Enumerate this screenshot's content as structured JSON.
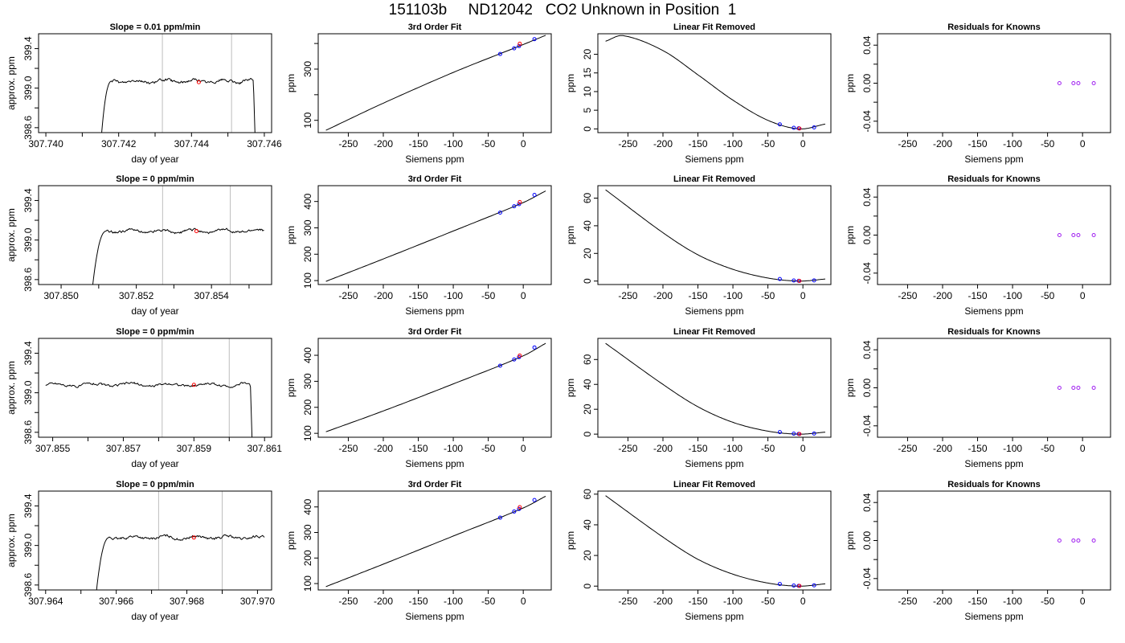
{
  "title": "151103b     ND12042   CO2 Unknown in Position  1",
  "colors": {
    "line": "#000000",
    "known_point": "#0000ff",
    "unknown_point": "#ff0000",
    "residual_point": "#a020f0",
    "window_line": "#bebebe"
  },
  "chart_data": [
    {
      "type": "line",
      "panel": "time",
      "title": "Slope =  0.01  ppm/min",
      "xlabel": "day of year",
      "ylabel": "approx. ppm",
      "xlim": [
        307.7398,
        307.7462
      ],
      "ylim": [
        398.55,
        399.55
      ],
      "xticks": [
        307.74,
        307.742,
        307.744,
        307.746
      ],
      "xtick_labels": [
        "307.740",
        "307.742",
        "307.744",
        "307.746"
      ],
      "xtick_minor": [
        307.741,
        307.743,
        307.745
      ],
      "yticks": [
        398.6,
        399.0,
        399.4
      ],
      "ytick_labels": [
        "398.6",
        "399.0",
        "399.4"
      ],
      "ytick_minor": [
        398.8,
        399.2
      ],
      "series_x_range": [
        307.7415,
        307.7458
      ],
      "rise_end": 307.7418,
      "plateau": 399.07,
      "drop_start": 307.7457,
      "vlines": [
        307.7432,
        307.7451
      ],
      "marker": {
        "x": 307.7442,
        "y": 399.06
      }
    },
    {
      "type": "line",
      "panel": "fit",
      "title": "3rd Order Fit",
      "xlabel": "Siemens ppm",
      "ylabel": "ppm",
      "xlim": [
        -293,
        40
      ],
      "ylim": [
        52,
        438
      ],
      "xticks": [
        -250,
        -200,
        -150,
        -100,
        -50,
        0
      ],
      "xtick_labels": [
        "-250",
        "-200",
        "-150",
        "-100",
        "-50",
        "0"
      ],
      "yticks": [
        100,
        300
      ],
      "ytick_labels": [
        "100",
        "300"
      ],
      "ytick_minor": [
        200,
        400
      ],
      "curve": [
        {
          "x": -282,
          "y": 61
        },
        {
          "x": -200,
          "y": 167
        },
        {
          "x": -100,
          "y": 287
        },
        {
          "x": 0,
          "y": 396
        },
        {
          "x": 32,
          "y": 432
        }
      ],
      "knowns": [
        {
          "x": -33,
          "y": 359
        },
        {
          "x": -13,
          "y": 381
        },
        {
          "x": -6,
          "y": 390
        },
        {
          "x": 16,
          "y": 417
        }
      ],
      "unknown": {
        "x": -5,
        "y": 399
      }
    },
    {
      "type": "line",
      "panel": "linfit",
      "title": "Linear Fit Removed",
      "xlabel": "Siemens ppm",
      "ylabel": "ppm",
      "xlim": [
        -293,
        40
      ],
      "ylim": [
        -1,
        25.5
      ],
      "xticks": [
        -250,
        -200,
        -150,
        -100,
        -50,
        0
      ],
      "xtick_labels": [
        "-250",
        "-200",
        "-150",
        "-100",
        "-50",
        "0"
      ],
      "yticks": [
        0,
        5,
        10,
        15,
        20
      ],
      "ytick_labels": [
        "0",
        "5",
        "10",
        "15",
        "20"
      ],
      "curve": [
        {
          "x": -282,
          "y": 23.5
        },
        {
          "x": -257,
          "y": 25.0
        },
        {
          "x": -200,
          "y": 21.0
        },
        {
          "x": -150,
          "y": 14.5
        },
        {
          "x": -100,
          "y": 7.7
        },
        {
          "x": -50,
          "y": 2.3
        },
        {
          "x": -5,
          "y": 0
        },
        {
          "x": 32,
          "y": 1.3
        }
      ],
      "knowns": [
        {
          "x": -33,
          "y": 1.2
        },
        {
          "x": -13,
          "y": 0.3
        },
        {
          "x": -6,
          "y": 0.15
        },
        {
          "x": 16,
          "y": 0.4
        }
      ],
      "unknown": {
        "x": -5,
        "y": 0.1
      }
    },
    {
      "type": "scatter",
      "panel": "resid",
      "title": "Residuals for Knowns",
      "xlabel": "Siemens ppm",
      "ylabel": "ppm",
      "xlim": [
        -293,
        40
      ],
      "ylim": [
        -0.052,
        0.052
      ],
      "xticks": [
        -250,
        -200,
        -150,
        -100,
        -50,
        0
      ],
      "xtick_labels": [
        "-250",
        "-200",
        "-150",
        "-100",
        "-50",
        "0"
      ],
      "yticks": [
        -0.04,
        0.0,
        0.04
      ],
      "ytick_labels": [
        "-0.04",
        "0.00",
        "0.04"
      ],
      "ytick_minor": [
        -0.02,
        0.02
      ],
      "points": [
        {
          "x": -33,
          "y": 0
        },
        {
          "x": -13,
          "y": 0
        },
        {
          "x": -6,
          "y": 0
        },
        {
          "x": 16,
          "y": 0
        }
      ]
    },
    {
      "type": "line",
      "panel": "time",
      "title": "Slope =  0  ppm/min",
      "xlabel": "day of year",
      "ylabel": "approx. ppm",
      "xlim": [
        307.8494,
        307.8556
      ],
      "ylim": [
        398.55,
        399.55
      ],
      "xticks": [
        307.85,
        307.852,
        307.854
      ],
      "xtick_labels": [
        "307.850",
        "307.852",
        "307.854"
      ],
      "xtick_minor": [
        307.851,
        307.853,
        307.855
      ],
      "yticks": [
        398.6,
        399.0,
        399.4
      ],
      "ytick_labels": [
        "398.6",
        "399.0",
        "399.4"
      ],
      "ytick_minor": [
        398.8,
        399.2
      ],
      "series_x_range": [
        307.8508,
        307.8554
      ],
      "rise_end": 307.8512,
      "plateau": 399.09,
      "drop_start": null,
      "vlines": [
        307.8527,
        307.8545
      ],
      "marker": {
        "x": 307.8536,
        "y": 399.09
      }
    },
    {
      "type": "line",
      "panel": "fit",
      "title": "3rd Order Fit",
      "xlabel": "Siemens ppm",
      "ylabel": "ppm",
      "xlim": [
        -293,
        40
      ],
      "ylim": [
        85,
        460
      ],
      "xticks": [
        -250,
        -200,
        -150,
        -100,
        -50,
        0
      ],
      "xtick_labels": [
        "-250",
        "-200",
        "-150",
        "-100",
        "-50",
        "0"
      ],
      "yticks": [
        100,
        200,
        300,
        400
      ],
      "ytick_labels": [
        "100",
        "200",
        "300",
        "400"
      ],
      "curve": [
        {
          "x": -282,
          "y": 97
        },
        {
          "x": -200,
          "y": 182
        },
        {
          "x": -100,
          "y": 288
        },
        {
          "x": 0,
          "y": 396
        },
        {
          "x": 32,
          "y": 440
        }
      ],
      "knowns": [
        {
          "x": -33,
          "y": 358
        },
        {
          "x": -13,
          "y": 382
        },
        {
          "x": -6,
          "y": 390
        },
        {
          "x": 16,
          "y": 425
        }
      ],
      "unknown": {
        "x": -5,
        "y": 398
      }
    },
    {
      "type": "line",
      "panel": "linfit",
      "title": "Linear Fit Removed",
      "xlabel": "Siemens ppm",
      "ylabel": "ppm",
      "xlim": [
        -293,
        40
      ],
      "ylim": [
        -2.5,
        69
      ],
      "xticks": [
        -250,
        -200,
        -150,
        -100,
        -50,
        0
      ],
      "xtick_labels": [
        "-250",
        "-200",
        "-150",
        "-100",
        "-50",
        "0"
      ],
      "yticks": [
        0,
        20,
        40,
        60
      ],
      "ytick_labels": [
        "0",
        "20",
        "40",
        "60"
      ],
      "curve": [
        {
          "x": -282,
          "y": 66
        },
        {
          "x": -200,
          "y": 35
        },
        {
          "x": -150,
          "y": 19
        },
        {
          "x": -100,
          "y": 8.5
        },
        {
          "x": -50,
          "y": 2.2
        },
        {
          "x": -5,
          "y": 0
        },
        {
          "x": 32,
          "y": 1.5
        }
      ],
      "knowns": [
        {
          "x": -33,
          "y": 1.5
        },
        {
          "x": -13,
          "y": 0.4
        },
        {
          "x": -6,
          "y": 0.2
        },
        {
          "x": 16,
          "y": 0.5
        }
      ],
      "unknown": {
        "x": -5,
        "y": 0.1
      }
    },
    {
      "type": "scatter",
      "panel": "resid",
      "title": "Residuals for Knowns",
      "xlabel": "Siemens ppm",
      "ylabel": "ppm",
      "xlim": [
        -293,
        40
      ],
      "ylim": [
        -0.052,
        0.052
      ],
      "xticks": [
        -250,
        -200,
        -150,
        -100,
        -50,
        0
      ],
      "xtick_labels": [
        "-250",
        "-200",
        "-150",
        "-100",
        "-50",
        "0"
      ],
      "yticks": [
        -0.04,
        0.0,
        0.04
      ],
      "ytick_labels": [
        "-0.04",
        "0.00",
        "0.04"
      ],
      "ytick_minor": [
        -0.02,
        0.02
      ],
      "points": [
        {
          "x": -33,
          "y": 0
        },
        {
          "x": -13,
          "y": 0
        },
        {
          "x": -6,
          "y": 0
        },
        {
          "x": 16,
          "y": 0
        }
      ]
    },
    {
      "type": "line",
      "panel": "time",
      "title": "Slope =  0  ppm/min",
      "xlabel": "day of year",
      "ylabel": "approx. ppm",
      "xlim": [
        307.8546,
        307.8612
      ],
      "ylim": [
        398.55,
        399.55
      ],
      "xticks": [
        307.855,
        307.857,
        307.859,
        307.861
      ],
      "xtick_labels": [
        "307.855",
        "307.857",
        "307.859",
        "307.861"
      ],
      "xtick_minor": [
        307.856,
        307.858,
        307.86
      ],
      "yticks": [
        398.6,
        399.0,
        399.4
      ],
      "ytick_labels": [
        "398.6",
        "399.0",
        "399.4"
      ],
      "ytick_minor": [
        398.8,
        399.2
      ],
      "series_x_range": [
        307.8548,
        307.8607
      ],
      "rise_end": null,
      "plateau": 399.08,
      "drop_start": 307.8606,
      "vlines": [
        307.8581,
        307.86
      ],
      "marker": {
        "x": 307.859,
        "y": 399.08
      }
    },
    {
      "type": "line",
      "panel": "fit",
      "title": "3rd Order Fit",
      "xlabel": "Siemens ppm",
      "ylabel": "ppm",
      "xlim": [
        -293,
        40
      ],
      "ylim": [
        85,
        465
      ],
      "xticks": [
        -250,
        -200,
        -150,
        -100,
        -50,
        0
      ],
      "xtick_labels": [
        "-250",
        "-200",
        "-150",
        "-100",
        "-50",
        "0"
      ],
      "yticks": [
        100,
        200,
        300,
        400
      ],
      "ytick_labels": [
        "100",
        "200",
        "300",
        "400"
      ],
      "curve": [
        {
          "x": -282,
          "y": 106
        },
        {
          "x": -200,
          "y": 186
        },
        {
          "x": -100,
          "y": 290
        },
        {
          "x": 0,
          "y": 398
        },
        {
          "x": 32,
          "y": 446
        }
      ],
      "knowns": [
        {
          "x": -33,
          "y": 360
        },
        {
          "x": -13,
          "y": 384
        },
        {
          "x": -6,
          "y": 393
        },
        {
          "x": 16,
          "y": 430
        }
      ],
      "unknown": {
        "x": -5,
        "y": 399
      }
    },
    {
      "type": "line",
      "panel": "linfit",
      "title": "Linear Fit Removed",
      "xlabel": "Siemens ppm",
      "ylabel": "ppm",
      "xlim": [
        -293,
        40
      ],
      "ylim": [
        -2.5,
        77
      ],
      "xticks": [
        -250,
        -200,
        -150,
        -100,
        -50,
        0
      ],
      "xtick_labels": [
        "-250",
        "-200",
        "-150",
        "-100",
        "-50",
        "0"
      ],
      "yticks": [
        0,
        20,
        40,
        60
      ],
      "ytick_labels": [
        "0",
        "20",
        "40",
        "60"
      ],
      "curve": [
        {
          "x": -282,
          "y": 73
        },
        {
          "x": -200,
          "y": 40
        },
        {
          "x": -150,
          "y": 22
        },
        {
          "x": -100,
          "y": 9.5
        },
        {
          "x": -50,
          "y": 2.4
        },
        {
          "x": -5,
          "y": 0
        },
        {
          "x": 32,
          "y": 1.6
        }
      ],
      "knowns": [
        {
          "x": -33,
          "y": 1.6
        },
        {
          "x": -13,
          "y": 0.4
        },
        {
          "x": -6,
          "y": 0.2
        },
        {
          "x": 16,
          "y": 0.5
        }
      ],
      "unknown": {
        "x": -5,
        "y": 0.1
      }
    },
    {
      "type": "scatter",
      "panel": "resid",
      "title": "Residuals for Knowns",
      "xlabel": "Siemens ppm",
      "ylabel": "ppm",
      "xlim": [
        -293,
        40
      ],
      "ylim": [
        -0.052,
        0.052
      ],
      "xticks": [
        -250,
        -200,
        -150,
        -100,
        -50,
        0
      ],
      "xtick_labels": [
        "-250",
        "-200",
        "-150",
        "-100",
        "-50",
        "0"
      ],
      "yticks": [
        -0.04,
        0.0,
        0.04
      ],
      "ytick_labels": [
        "-0.04",
        "0.00",
        "0.04"
      ],
      "ytick_minor": [
        -0.02,
        0.02
      ],
      "points": [
        {
          "x": -33,
          "y": 0
        },
        {
          "x": -13,
          "y": 0
        },
        {
          "x": -6,
          "y": 0
        },
        {
          "x": 16,
          "y": 0
        }
      ]
    },
    {
      "type": "line",
      "panel": "time",
      "title": "Slope =  0  ppm/min",
      "xlabel": "day of year",
      "ylabel": "approx. ppm",
      "xlim": [
        307.9638,
        307.9704
      ],
      "ylim": [
        398.55,
        399.55
      ],
      "xticks": [
        307.964,
        307.966,
        307.968,
        307.97
      ],
      "xtick_labels": [
        "307.964",
        "307.966",
        "307.968",
        "307.970"
      ],
      "xtick_minor": [
        307.965,
        307.967,
        307.969
      ],
      "yticks": [
        398.6,
        399.0,
        399.4
      ],
      "ytick_labels": [
        "398.6",
        "399.0",
        "399.4"
      ],
      "ytick_minor": [
        398.8,
        399.2
      ],
      "series_x_range": [
        307.9654,
        307.9702
      ],
      "rise_end": 307.9658,
      "plateau": 399.08,
      "drop_start": null,
      "vlines": [
        307.9672,
        307.969
      ],
      "marker": {
        "x": 307.9682,
        "y": 399.08
      }
    },
    {
      "type": "line",
      "panel": "fit",
      "title": "3rd Order Fit",
      "xlabel": "Siemens ppm",
      "ylabel": "ppm",
      "xlim": [
        -293,
        40
      ],
      "ylim": [
        75,
        462
      ],
      "xticks": [
        -250,
        -200,
        -150,
        -100,
        -50,
        0
      ],
      "xtick_labels": [
        "-250",
        "-200",
        "-150",
        "-100",
        "-50",
        "0"
      ],
      "yticks": [
        100,
        200,
        300,
        400
      ],
      "ytick_labels": [
        "100",
        "200",
        "300",
        "400"
      ],
      "curve": [
        {
          "x": -282,
          "y": 88
        },
        {
          "x": -200,
          "y": 176
        },
        {
          "x": -100,
          "y": 286
        },
        {
          "x": 0,
          "y": 396
        },
        {
          "x": 32,
          "y": 442
        }
      ],
      "knowns": [
        {
          "x": -33,
          "y": 358
        },
        {
          "x": -13,
          "y": 382
        },
        {
          "x": -6,
          "y": 392
        },
        {
          "x": 16,
          "y": 427
        }
      ],
      "unknown": {
        "x": -5,
        "y": 399
      }
    },
    {
      "type": "line",
      "panel": "linfit",
      "title": "Linear Fit Removed",
      "xlabel": "Siemens ppm",
      "ylabel": "ppm",
      "xlim": [
        -293,
        40
      ],
      "ylim": [
        -2.5,
        62
      ],
      "xticks": [
        -250,
        -200,
        -150,
        -100,
        -50,
        0
      ],
      "xtick_labels": [
        "-250",
        "-200",
        "-150",
        "-100",
        "-50",
        "0"
      ],
      "yticks": [
        0,
        20,
        40,
        60
      ],
      "ytick_labels": [
        "0",
        "20",
        "40",
        "60"
      ],
      "curve": [
        {
          "x": -282,
          "y": 59
        },
        {
          "x": -200,
          "y": 32
        },
        {
          "x": -150,
          "y": 17.5
        },
        {
          "x": -100,
          "y": 7.8
        },
        {
          "x": -50,
          "y": 2.0
        },
        {
          "x": -5,
          "y": 0
        },
        {
          "x": 32,
          "y": 1.5
        }
      ],
      "knowns": [
        {
          "x": -33,
          "y": 1.4
        },
        {
          "x": -13,
          "y": 0.4
        },
        {
          "x": -6,
          "y": 0.2
        },
        {
          "x": 16,
          "y": 0.5
        }
      ],
      "unknown": {
        "x": -5,
        "y": 0.1
      }
    },
    {
      "type": "scatter",
      "panel": "resid",
      "title": "Residuals for Knowns",
      "xlabel": "Siemens ppm",
      "ylabel": "ppm",
      "xlim": [
        -293,
        40
      ],
      "ylim": [
        -0.052,
        0.052
      ],
      "xticks": [
        -250,
        -200,
        -150,
        -100,
        -50,
        0
      ],
      "xtick_labels": [
        "-250",
        "-200",
        "-150",
        "-100",
        "-50",
        "0"
      ],
      "yticks": [
        -0.04,
        0.0,
        0.04
      ],
      "ytick_labels": [
        "-0.04",
        "0.00",
        "0.04"
      ],
      "ytick_minor": [
        -0.02,
        0.02
      ],
      "points": [
        {
          "x": -33,
          "y": 0
        },
        {
          "x": -13,
          "y": 0
        },
        {
          "x": -6,
          "y": 0
        },
        {
          "x": 16,
          "y": 0
        }
      ]
    }
  ]
}
